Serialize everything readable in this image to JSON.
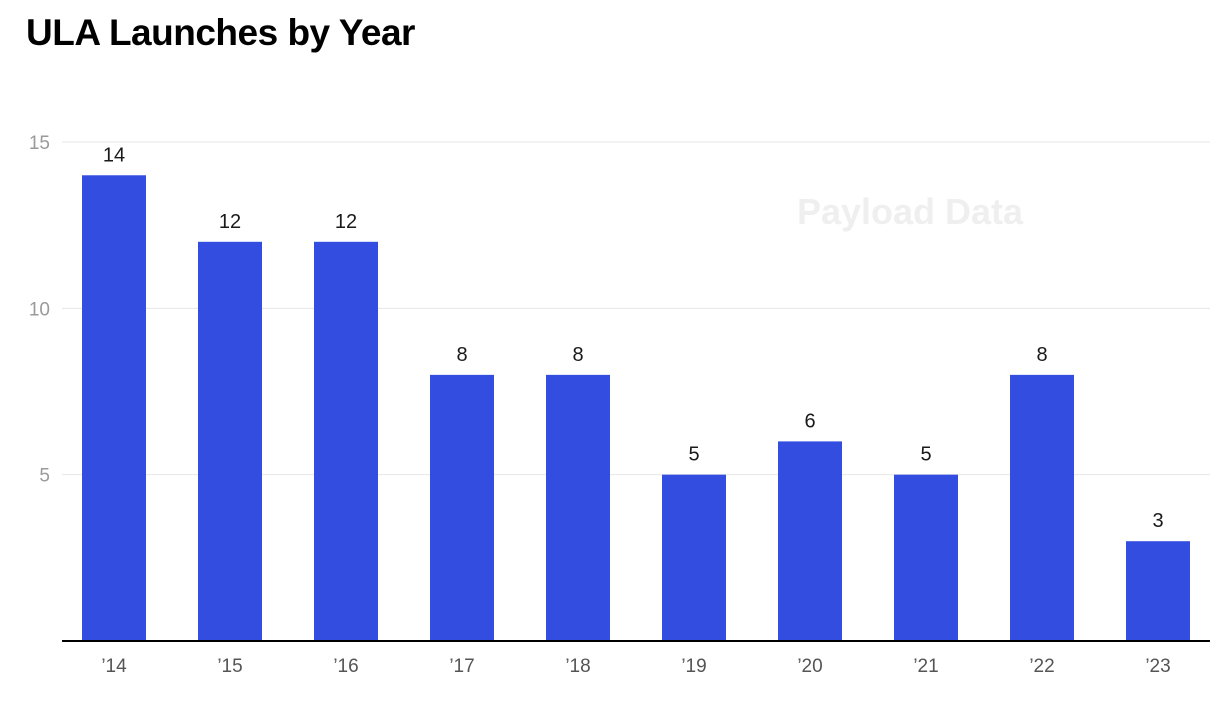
{
  "title": "ULA Launches by Year",
  "watermark": "Payload Data",
  "colors": {
    "bar": "#334de0",
    "grid": "#e6e6e6",
    "axis": "#000000"
  },
  "chart_data": {
    "type": "bar",
    "title": "ULA Launches by Year",
    "categories": [
      "’14",
      "’15",
      "’16",
      "’17",
      "’18",
      "’19",
      "’20",
      "’21",
      "’22",
      "’23"
    ],
    "values": [
      14,
      12,
      12,
      8,
      8,
      5,
      6,
      5,
      8,
      3
    ],
    "ylim": [
      0,
      15
    ],
    "yticks": [
      5,
      10,
      15
    ],
    "xlabel": "",
    "ylabel": "",
    "grid": true,
    "legend": "none"
  }
}
